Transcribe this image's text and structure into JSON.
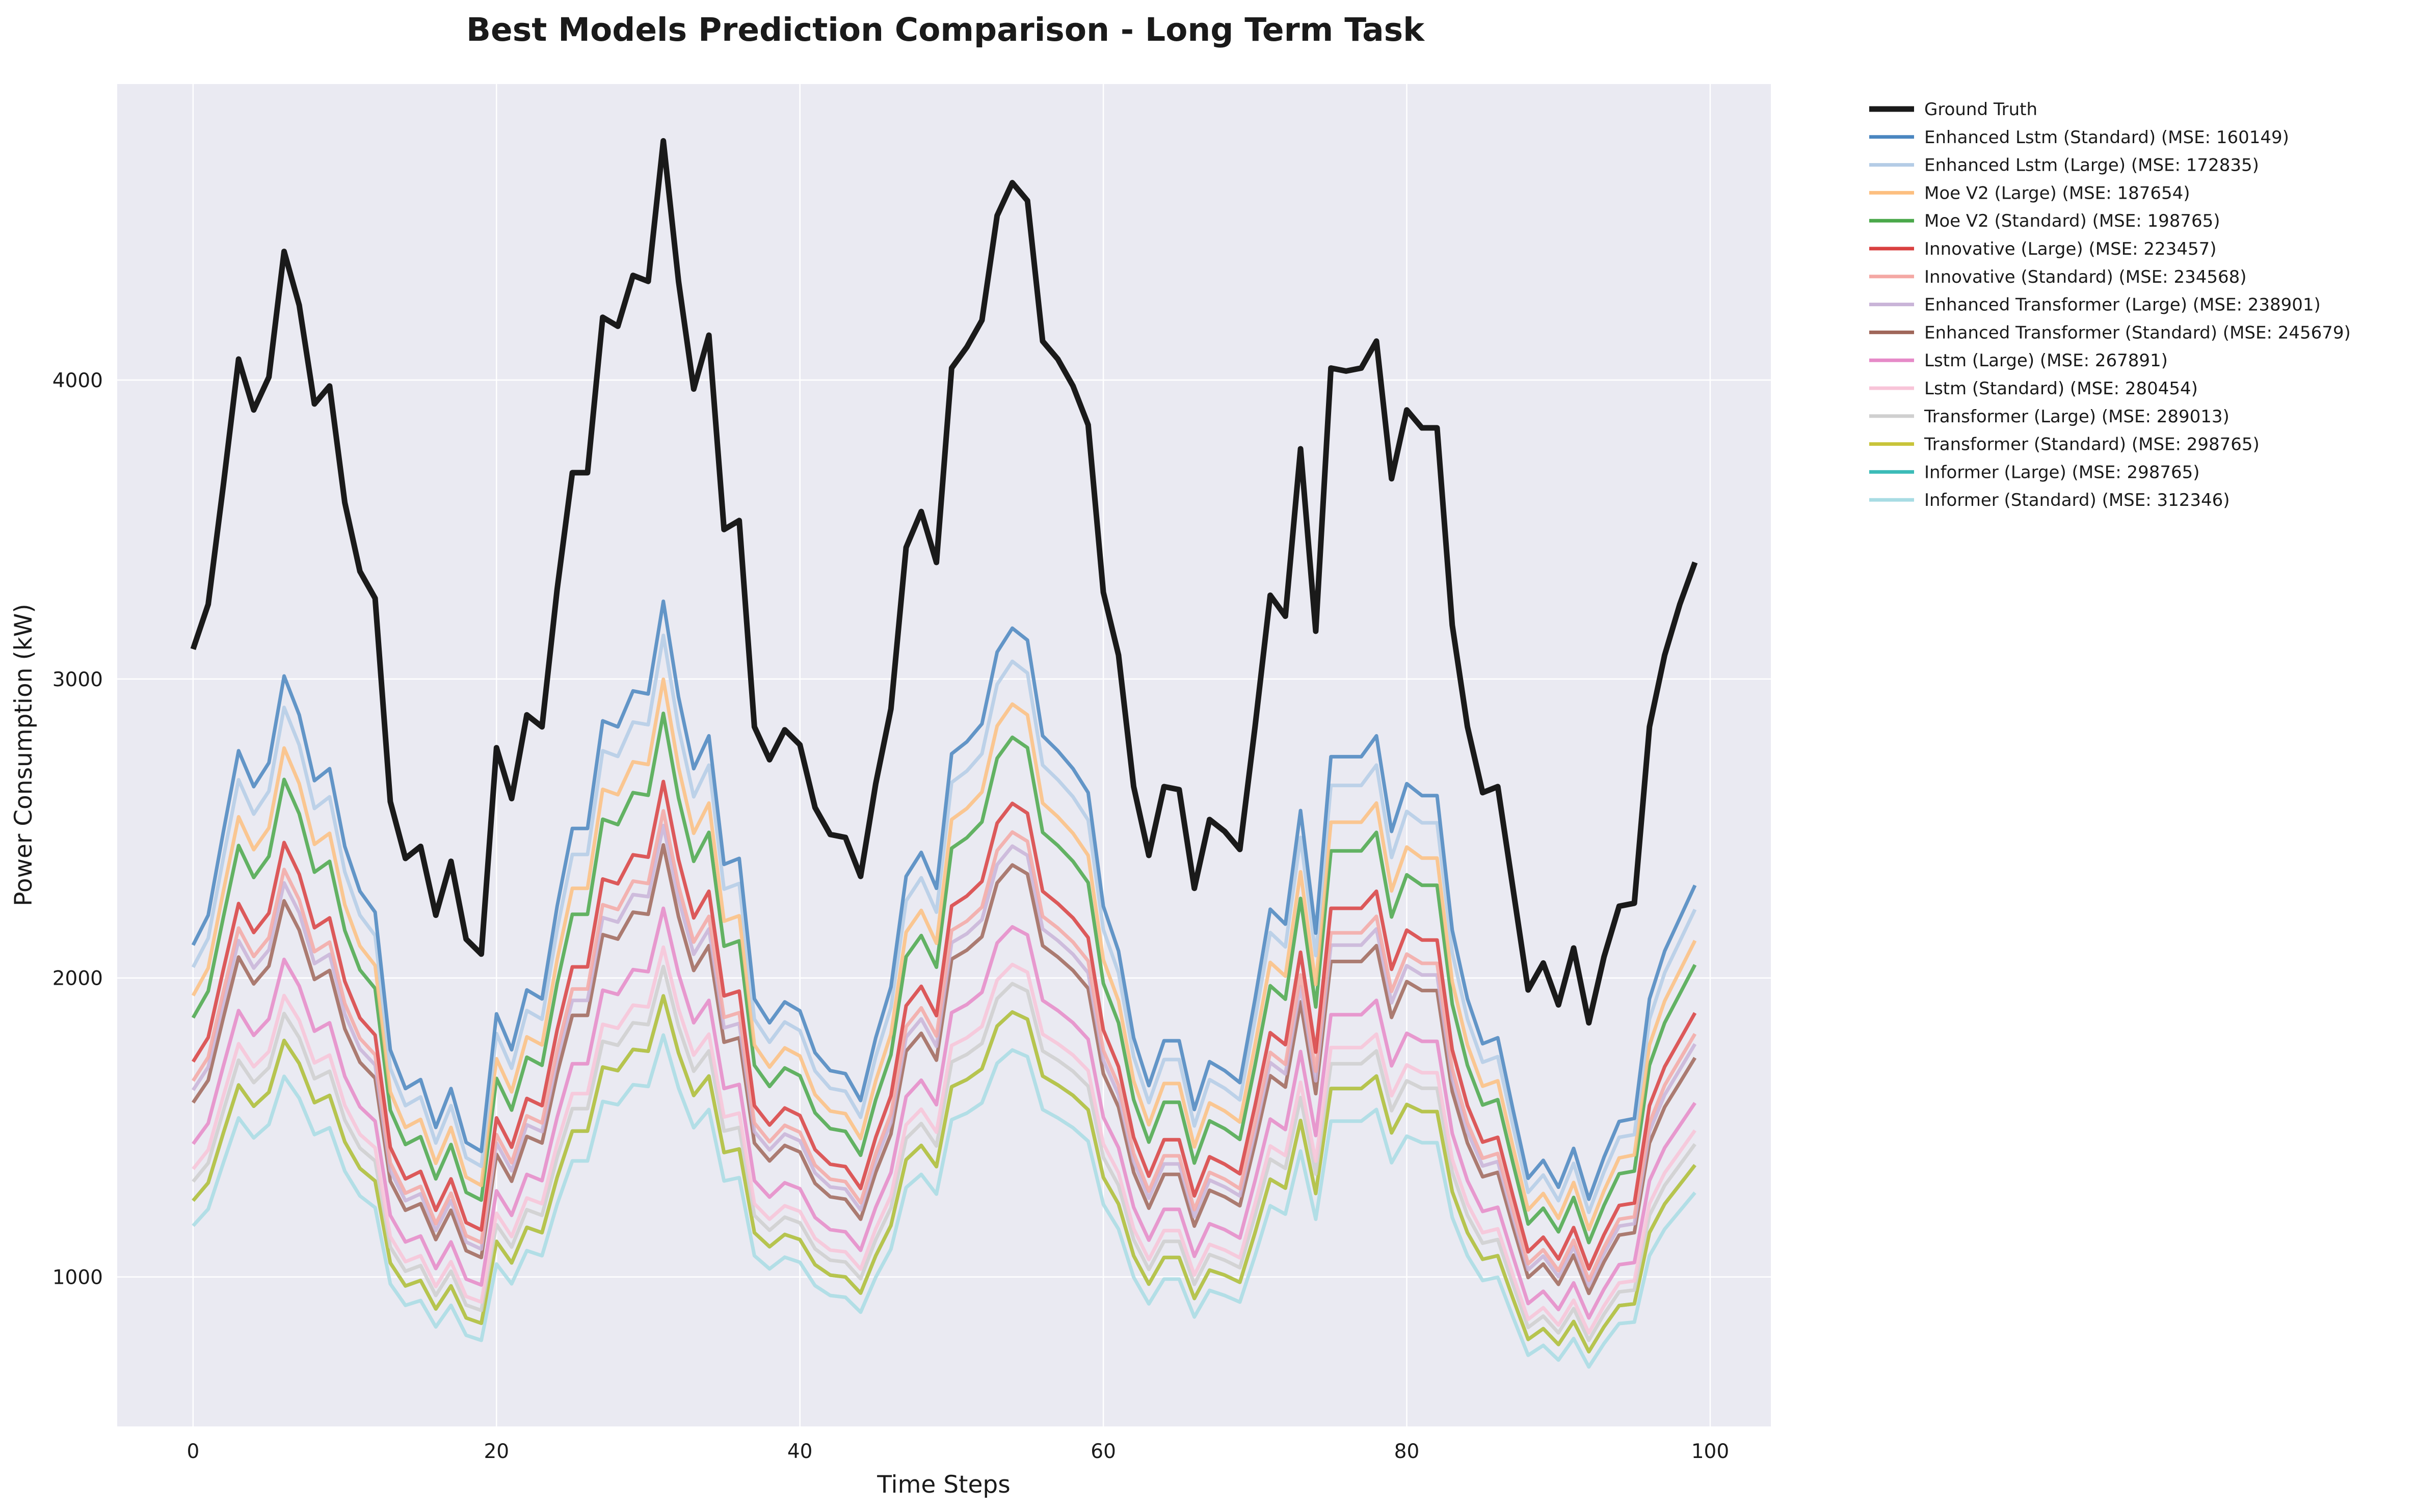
{
  "chart_data": {
    "type": "line",
    "title": "Best Models Prediction Comparison - Long Term Task",
    "xlabel": "Time Steps",
    "ylabel": "Power Consumption (kW)",
    "xlim": [
      -5,
      104
    ],
    "ylim": [
      500,
      4990
    ],
    "xticks": [
      0,
      20,
      40,
      60,
      80,
      100
    ],
    "yticks": [
      1000,
      2000,
      3000,
      4000
    ],
    "grid": true,
    "legend_position": "outside-top-right",
    "x_start": 0,
    "ground_truth": {
      "name": "Ground Truth",
      "color": "#1a1a1a",
      "values": [
        3100,
        3250,
        3650,
        4070,
        3900,
        4010,
        4430,
        4250,
        3920,
        3980,
        3590,
        3360,
        3270,
        2590,
        2400,
        2440,
        2210,
        2390,
        2130,
        2080,
        2770,
        2600,
        2880,
        2840,
        3300,
        3690,
        3690,
        4210,
        4180,
        4350,
        4330,
        4800,
        4330,
        3970,
        4150,
        3500,
        3530,
        2840,
        2730,
        2830,
        2780,
        2570,
        2480,
        2470,
        2340,
        2650,
        2900,
        3440,
        3560,
        3390,
        4040,
        4110,
        4200,
        4550,
        4660,
        4600,
        4130,
        4070,
        3980,
        3850,
        3290,
        3080,
        2640,
        2410,
        2640,
        2630,
        2300,
        2530,
        2490,
        2430,
        2840,
        3280,
        3210,
        3770,
        3160,
        4040,
        4030,
        4040,
        4130,
        3670,
        3900,
        3840,
        3840,
        3180,
        2840,
        2620,
        2640,
        2300,
        1960,
        2050,
        1910,
        2100,
        1850,
        2070,
        2240,
        2250,
        2840,
        3080,
        3250,
        3390
      ]
    },
    "base_shape": [
      2110,
      2210,
      2490,
      2760,
      2640,
      2720,
      3010,
      2880,
      2660,
      2700,
      2440,
      2290,
      2220,
      1760,
      1630,
      1660,
      1500,
      1630,
      1450,
      1420,
      1880,
      1760,
      1960,
      1930,
      2240,
      2500,
      2500,
      2860,
      2840,
      2960,
      2950,
      3260,
      2940,
      2700,
      2810,
      2380,
      2400,
      1930,
      1850,
      1920,
      1890,
      1750,
      1690,
      1680,
      1590,
      1800,
      1970,
      2340,
      2420,
      2300,
      2750,
      2790,
      2850,
      3090,
      3170,
      3130,
      2810,
      2760,
      2700,
      2620,
      2240,
      2090,
      1800,
      1640,
      1790,
      1790,
      1560,
      1720,
      1690,
      1650,
      1930,
      2230,
      2180,
      2560,
      2150,
      2740,
      2740,
      2740,
      2810,
      2490,
      2650,
      2610,
      2610,
      2160,
      1930,
      1780,
      1800,
      1560,
      1330,
      1390,
      1300,
      1430,
      1260,
      1400,
      1520,
      1530,
      1930,
      2090,
      2200,
      2310
    ],
    "series": [
      {
        "name": "Enhanced Lstm (Standard) (MSE: 160149)",
        "color": "#4a86c0",
        "factor": 1.0
      },
      {
        "name": "Enhanced Lstm (Large) (MSE: 172835)",
        "color": "#b4cce6",
        "factor": 0.965
      },
      {
        "name": "Moe V2 (Large) (MSE: 187654)",
        "color": "#fdbf80",
        "factor": 0.92
      },
      {
        "name": "Moe V2 (Standard) (MSE: 198765)",
        "color": "#4aa84a",
        "factor": 0.885
      },
      {
        "name": "Innovative (Large) (MSE: 223457)",
        "color": "#d94040",
        "factor": 0.815
      },
      {
        "name": "Innovative (Standard) (MSE: 234568)",
        "color": "#f4a8a4",
        "factor": 0.785
      },
      {
        "name": "Enhanced Transformer (Large) (MSE: 238901)",
        "color": "#c9b4d8",
        "factor": 0.77
      },
      {
        "name": "Enhanced Transformer (Standard) (MSE: 245679)",
        "color": "#a0675a",
        "factor": 0.75
      },
      {
        "name": "Lstm (Large) (MSE: 267891)",
        "color": "#e68ac8",
        "factor": 0.685
      },
      {
        "name": "Lstm (Standard) (MSE: 280454)",
        "color": "#f8c4d8",
        "factor": 0.645
      },
      {
        "name": "Transformer (Large) (MSE: 289013)",
        "color": "#cfcfcf",
        "factor": 0.625
      },
      {
        "name": "Transformer (Standard) (MSE: 298765)",
        "color": "#c8c43a",
        "factor": 0.595
      },
      {
        "name": "Informer (Large) (MSE: 298765)",
        "color": "#3cbcb8",
        "factor": 0.595
      },
      {
        "name": "Informer (Standard) (MSE: 312346)",
        "color": "#a8dce4",
        "factor": 0.555
      }
    ]
  }
}
